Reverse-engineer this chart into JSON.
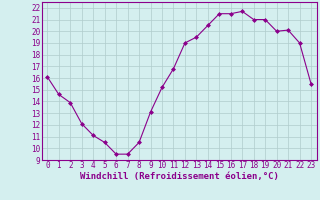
{
  "x": [
    0,
    1,
    2,
    3,
    4,
    5,
    6,
    7,
    8,
    9,
    10,
    11,
    12,
    13,
    14,
    15,
    16,
    17,
    18,
    19,
    20,
    21,
    22,
    23
  ],
  "y": [
    16.1,
    14.6,
    13.9,
    12.1,
    11.1,
    10.5,
    9.5,
    9.5,
    10.5,
    13.1,
    15.2,
    16.8,
    19.0,
    19.5,
    20.5,
    21.5,
    21.5,
    21.7,
    21.0,
    21.0,
    20.0,
    20.1,
    19.0,
    15.5
  ],
  "line_color": "#8B008B",
  "marker": "D",
  "marker_size": 2.0,
  "bg_color": "#d4efef",
  "grid_color": "#b0cccc",
  "xlabel": "Windchill (Refroidissement éolien,°C)",
  "xlabel_color": "#8B008B",
  "xlabel_fontsize": 6.5,
  "ylabel_ticks": [
    9,
    10,
    11,
    12,
    13,
    14,
    15,
    16,
    17,
    18,
    19,
    20,
    21,
    22
  ],
  "xlim": [
    -0.5,
    23.5
  ],
  "ylim": [
    9,
    22.5
  ],
  "xticks": [
    0,
    1,
    2,
    3,
    4,
    5,
    6,
    7,
    8,
    9,
    10,
    11,
    12,
    13,
    14,
    15,
    16,
    17,
    18,
    19,
    20,
    21,
    22,
    23
  ],
  "tick_fontsize": 5.5,
  "tick_color": "#8B008B",
  "line_width": 0.8
}
